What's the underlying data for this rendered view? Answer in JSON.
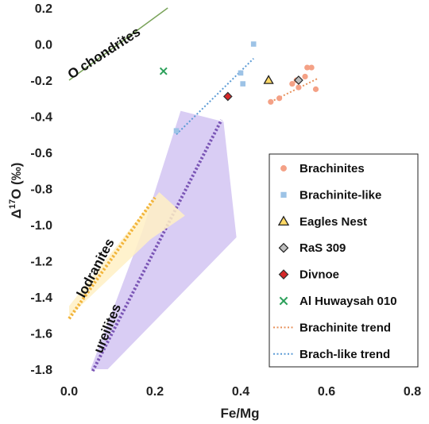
{
  "chart_data": {
    "type": "scatter",
    "xlabel": "Fe/Mg",
    "ylabel_main": "Δ",
    "ylabel_sup": "17",
    "ylabel_rest": "O (‰)",
    "xlim": [
      0,
      0.8
    ],
    "ylim": [
      -1.8,
      0.2
    ],
    "xticks": [
      0,
      0.2,
      0.4,
      0.6,
      0.8
    ],
    "xtick_labels": [
      "0.0",
      "0.2",
      "0.4",
      "0.6",
      "0.8"
    ],
    "yticks": [
      0.2,
      0,
      -0.2,
      -0.4,
      -0.6,
      -0.8,
      -1.0,
      -1.2,
      -1.4,
      -1.6,
      -1.8
    ],
    "ytick_labels": [
      "0.2",
      "0.0",
      "-0.2",
      "-0.4",
      "-0.6",
      "-0.8",
      "-1.0",
      "-1.2",
      "-1.4",
      "-1.6",
      "-1.8"
    ],
    "legend_position": "right",
    "series": [
      {
        "name": "Brachinites",
        "marker": "circle",
        "color": "#f4a186",
        "points": [
          [
            0.47,
            -0.32
          ],
          [
            0.49,
            -0.3
          ],
          [
            0.52,
            -0.22
          ],
          [
            0.53,
            -0.2
          ],
          [
            0.535,
            -0.24
          ],
          [
            0.55,
            -0.18
          ],
          [
            0.555,
            -0.13
          ],
          [
            0.565,
            -0.13
          ],
          [
            0.575,
            -0.25
          ]
        ]
      },
      {
        "name": "Brachinite-like",
        "marker": "square",
        "color": "#9dc3e6",
        "points": [
          [
            0.25,
            -0.48
          ],
          [
            0.4,
            -0.16
          ],
          [
            0.405,
            -0.22
          ],
          [
            0.43,
            0.0
          ]
        ]
      },
      {
        "name": "Eagles Nest",
        "marker": "triangle",
        "color": "#ffd966",
        "stroke": "#222222",
        "points": [
          [
            0.465,
            -0.2
          ]
        ]
      },
      {
        "name": "RaS 309",
        "marker": "diamond",
        "color": "#bfbfbf",
        "stroke": "#222222",
        "points": [
          [
            0.535,
            -0.2
          ]
        ]
      },
      {
        "name": "Divnoe",
        "marker": "diamond",
        "color": "#d62728",
        "stroke": "#333333",
        "points": [
          [
            0.37,
            -0.29
          ]
        ]
      },
      {
        "name": "Al Huwaysah 010",
        "marker": "x",
        "color": "#2ca05a",
        "points": [
          [
            0.22,
            -0.15
          ]
        ]
      }
    ],
    "trends": [
      {
        "name": "Brachinite trend",
        "color": "#e8925c",
        "points": [
          [
            0.47,
            -0.32
          ],
          [
            0.58,
            -0.19
          ]
        ]
      },
      {
        "name": "Brach-like trend",
        "color": "#5b9bd5",
        "points": [
          [
            0.25,
            -0.5
          ],
          [
            0.43,
            -0.08
          ]
        ]
      }
    ],
    "reference_lines": [
      {
        "label": "O chondrites",
        "color": "#7aa35a",
        "points": [
          [
            0.0,
            -0.2
          ],
          [
            0.23,
            0.2
          ]
        ]
      }
    ],
    "regions": [
      {
        "label": "ureilites",
        "fill": "#c9b8f0",
        "opacity": 0.7,
        "line_color": "#7a55b5",
        "polygon": [
          [
            0.09,
            -1.8
          ],
          [
            0.05,
            -1.8
          ],
          [
            0.17,
            -1.04
          ],
          [
            0.26,
            -0.37
          ],
          [
            0.36,
            -0.43
          ],
          [
            0.39,
            -1.07
          ]
        ],
        "line": [
          [
            0.055,
            -1.81
          ],
          [
            0.355,
            -0.42
          ]
        ]
      },
      {
        "label": "lodranites",
        "fill": "#fff0c4",
        "opacity": 0.85,
        "line_color": "#f2b43a",
        "polygon": [
          [
            0.0,
            -1.51
          ],
          [
            0.0,
            -1.45
          ],
          [
            0.21,
            -0.82
          ],
          [
            0.27,
            -0.95
          ],
          [
            0.19,
            -1.08
          ]
        ],
        "line": [
          [
            0.0,
            -1.52
          ],
          [
            0.2,
            -0.85
          ]
        ]
      }
    ]
  }
}
